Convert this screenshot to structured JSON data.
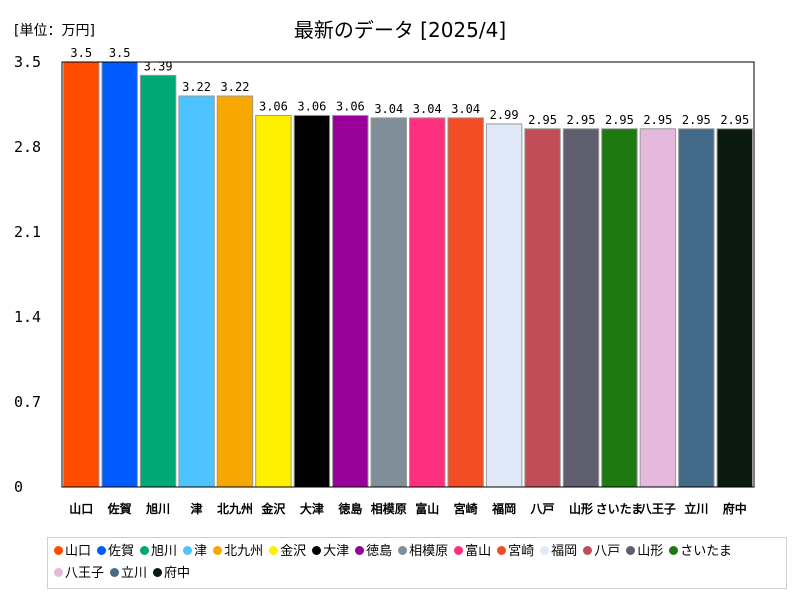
{
  "chart_data": {
    "type": "bar",
    "title": "最新のデータ [2025/4]",
    "unit_label": "[単位：万円]",
    "ylim": [
      0,
      3.5
    ],
    "yticks": [
      "0",
      "0.7",
      "1.4",
      "2.1",
      "2.8",
      "3.5"
    ],
    "grid": false,
    "legend_position": "bottom",
    "categories": [
      "山口",
      "佐賀",
      "旭川",
      "津",
      "北九州",
      "金沢",
      "大津",
      "徳島",
      "相模原",
      "富山",
      "宮崎",
      "福岡",
      "八戸",
      "山形",
      "さいたま",
      "八王子",
      "立川",
      "府中"
    ],
    "values": [
      3.5,
      3.5,
      3.39,
      3.22,
      3.22,
      3.06,
      3.06,
      3.06,
      3.04,
      3.04,
      3.04,
      2.99,
      2.95,
      2.95,
      2.95,
      2.95,
      2.95,
      2.95
    ],
    "value_labels": [
      "3.5",
      "3.5",
      "3.39",
      "3.22",
      "3.22",
      "3.06",
      "3.06",
      "3.06",
      "3.04",
      "3.04",
      "3.04",
      "2.99",
      "2.95",
      "2.95",
      "2.95",
      "2.95",
      "2.95",
      "2.95"
    ],
    "colors": [
      "#ff4c00",
      "#005bff",
      "#00a876",
      "#4dc4ff",
      "#f7a800",
      "#fff000",
      "#000000",
      "#99009a",
      "#808e9a",
      "#ff3080",
      "#f24d24",
      "#dfe9f7",
      "#c14d58",
      "#5e5e6e",
      "#1c7a10",
      "#e4b9dd",
      "#436a89",
      "#0a1a0d"
    ]
  }
}
